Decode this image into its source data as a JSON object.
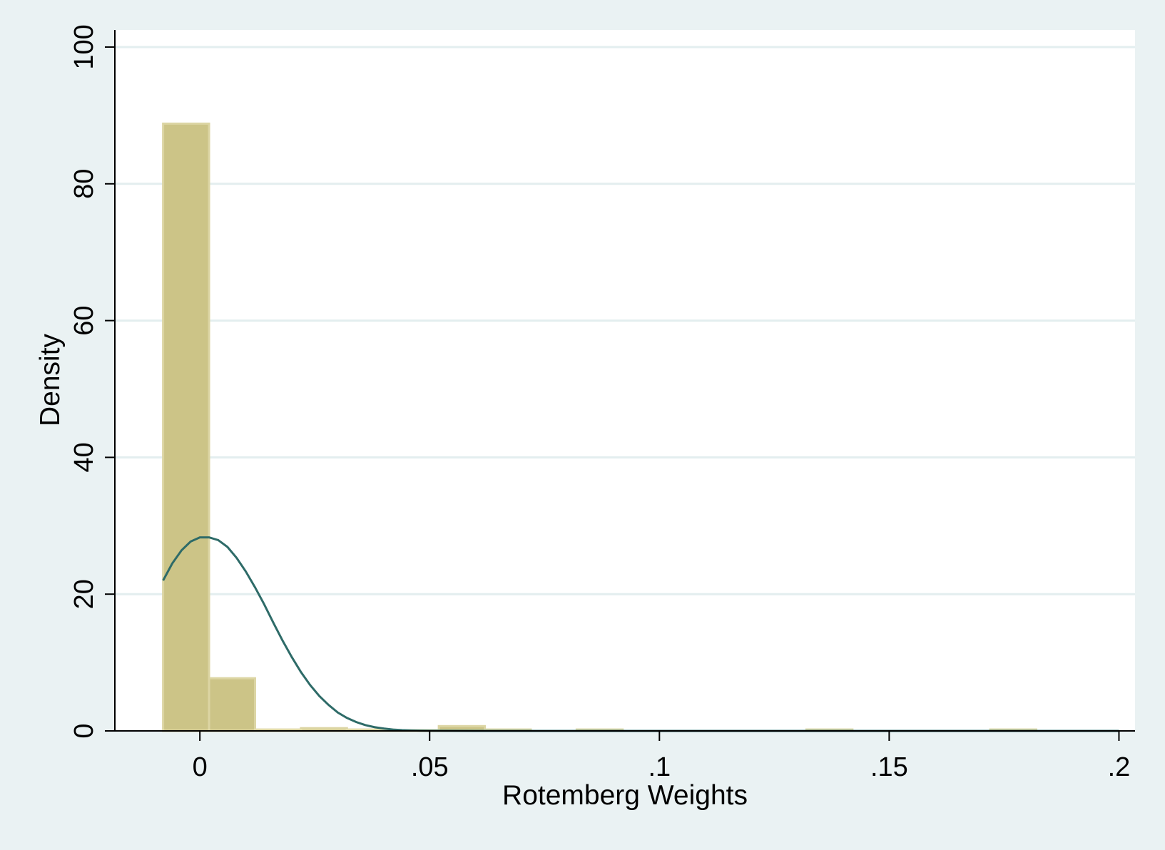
{
  "chart_data": {
    "type": "bar",
    "subtype": "histogram-with-normal-density",
    "title": "",
    "xlabel": "Rotemberg Weights",
    "ylabel": "Density",
    "xlim": [
      -0.0185,
      0.2035
    ],
    "ylim": [
      0,
      102.5
    ],
    "x_ticks": [
      0,
      0.05,
      0.1,
      0.15,
      0.2
    ],
    "x_tick_labels": [
      "0",
      ".05",
      ".1",
      ".15",
      ".2"
    ],
    "y_ticks": [
      0,
      20,
      40,
      60,
      80,
      100
    ],
    "y_tick_labels": [
      "0",
      "20",
      "40",
      "60",
      "80",
      "100"
    ],
    "grid": "horizontal",
    "legend": "none",
    "colors": {
      "background": "#eaf2f3",
      "plot_area": "#ffffff",
      "gridline": "#e3eeef",
      "bar_fill": "#ccc487",
      "bar_edge": "#dcd5a3",
      "curve": "#2e6b68",
      "axis": "#000000"
    },
    "bins": [
      {
        "x0": -0.008,
        "x1": 0.002,
        "density": 88.8
      },
      {
        "x0": 0.002,
        "x1": 0.012,
        "density": 7.7
      },
      {
        "x0": 0.012,
        "x1": 0.022,
        "density": 0.2
      },
      {
        "x0": 0.022,
        "x1": 0.032,
        "density": 0.4
      },
      {
        "x0": 0.032,
        "x1": 0.042,
        "density": 0.2
      },
      {
        "x0": 0.042,
        "x1": 0.052,
        "density": 0.1
      },
      {
        "x0": 0.052,
        "x1": 0.062,
        "density": 0.7
      },
      {
        "x0": 0.062,
        "x1": 0.072,
        "density": 0.2
      },
      {
        "x0": 0.082,
        "x1": 0.092,
        "density": 0.2
      },
      {
        "x0": 0.132,
        "x1": 0.142,
        "density": 0.2
      },
      {
        "x0": 0.172,
        "x1": 0.182,
        "density": 0.2
      }
    ],
    "normal_curve": {
      "x_start": -0.008,
      "x_end": 0.2,
      "x": [
        -0.008,
        -0.006,
        -0.004,
        -0.002,
        0.0,
        0.002,
        0.004,
        0.006,
        0.008,
        0.01,
        0.012,
        0.014,
        0.016,
        0.018,
        0.02,
        0.022,
        0.024,
        0.026,
        0.028,
        0.03,
        0.032,
        0.034,
        0.036,
        0.038,
        0.04,
        0.042,
        0.044,
        0.046,
        0.048,
        0.05,
        0.055,
        0.06,
        0.07,
        0.08,
        0.1,
        0.15,
        0.2
      ],
      "y": [
        22.0,
        24.5,
        26.4,
        27.7,
        28.3,
        28.3,
        27.9,
        26.9,
        25.3,
        23.3,
        21.0,
        18.5,
        15.8,
        13.2,
        10.8,
        8.6,
        6.7,
        5.1,
        3.8,
        2.7,
        1.9,
        1.3,
        0.85,
        0.55,
        0.35,
        0.2,
        0.12,
        0.07,
        0.04,
        0.02,
        0.01,
        0.0,
        0.0,
        0.0,
        0.0,
        0.0,
        0.0
      ]
    }
  }
}
